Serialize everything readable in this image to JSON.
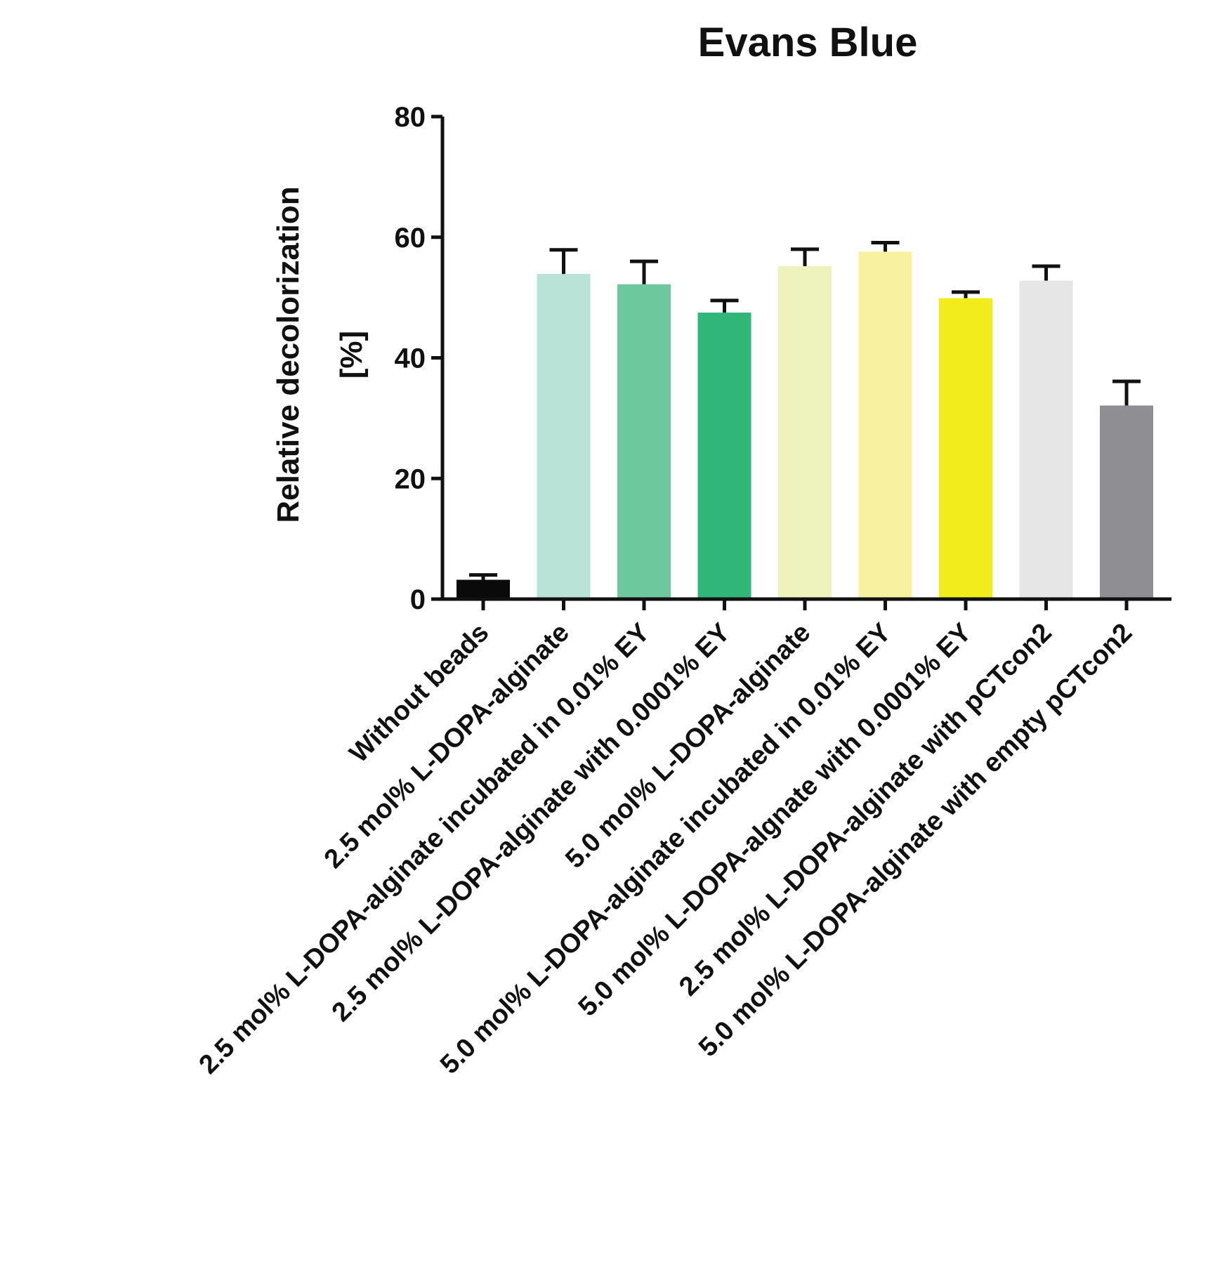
{
  "chart_data": {
    "type": "bar",
    "title": "Evans Blue",
    "ylabel_lines": [
      "Relative decolorization",
      "[%]"
    ],
    "ylim": [
      0,
      80
    ],
    "yticks": [
      0,
      20,
      40,
      60,
      80
    ],
    "grid": false,
    "categories": [
      "Without beads",
      "2.5 mol% L-DOPA-alginate",
      "2.5 mol% L-DOPA-alginate incubated in 0.01% EY",
      "2.5 mol% L-DOPA-alginate with 0.0001% EY",
      "5.0 mol% L-DOPA-alginate",
      "5.0 mol% L-DOPA-alginate incubated in 0.01% EY",
      "5.0 mol% L-DOPA-algnate with 0.0001% EY",
      "2.5 mol% L-DOPA-alginate with pCTcon2",
      "5.0 mol% L-DOPA-alginate with empty pCTcon2"
    ],
    "values": [
      3.2,
      53.9,
      52.2,
      47.5,
      55.2,
      57.6,
      49.9,
      52.8,
      32.1
    ],
    "errors": [
      0.8,
      4.0,
      3.8,
      2.0,
      2.8,
      1.5,
      1.0,
      2.4,
      4.0
    ],
    "colors": [
      "#0a0a0a",
      "#b8e3d6",
      "#6ec89e",
      "#2fb678",
      "#eef3bd",
      "#f7f1a0",
      "#f2ec1c",
      "#e6e6e6",
      "#8f8f93"
    ]
  }
}
